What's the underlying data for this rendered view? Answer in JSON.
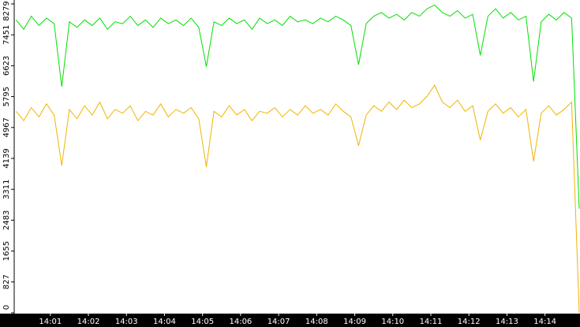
{
  "chart_data": {
    "type": "line",
    "x": [
      840.1,
      840.3,
      840.5,
      840.7,
      840.9,
      841.1,
      841.3,
      841.5,
      841.7,
      841.9,
      842.1,
      842.3,
      842.5,
      842.7,
      842.9,
      843.1,
      843.3,
      843.5,
      843.7,
      843.9,
      844.1,
      844.3,
      844.5,
      844.7,
      844.9,
      845.1,
      845.3,
      845.5,
      845.7,
      845.9,
      846.1,
      846.3,
      846.5,
      846.7,
      846.9,
      847.1,
      847.3,
      847.5,
      847.7,
      847.9,
      848.1,
      848.3,
      848.5,
      848.7,
      848.9,
      849.1,
      849.3,
      849.5,
      849.7,
      849.9,
      850.1,
      850.3,
      850.5,
      850.7,
      850.9,
      851.1,
      851.3,
      851.5,
      851.7,
      851.9,
      852.1,
      852.3,
      852.5,
      852.7,
      852.9,
      853.1,
      853.3,
      853.5,
      853.7,
      853.9,
      854.1,
      854.3,
      854.5,
      854.7,
      854.9
    ],
    "series": [
      {
        "color": "#00e000",
        "values": [
          7850,
          7600,
          7950,
          7700,
          7900,
          7750,
          6060,
          7800,
          7650,
          7850,
          7700,
          7900,
          7600,
          7800,
          7750,
          7950,
          7700,
          7850,
          7650,
          7900,
          7750,
          7850,
          7700,
          7900,
          7650,
          6600,
          7800,
          7700,
          7900,
          7750,
          7850,
          7600,
          7900,
          7750,
          7850,
          7700,
          7950,
          7800,
          7850,
          7750,
          7900,
          7800,
          7950,
          7850,
          7700,
          6650,
          7750,
          7950,
          8050,
          7900,
          8000,
          7850,
          8050,
          7950,
          8150,
          8250,
          8050,
          7950,
          8100,
          7900,
          8000,
          6900,
          7950,
          8150,
          7900,
          8050,
          7850,
          7950,
          6200,
          7800,
          8000,
          7850,
          8050,
          7900,
          2790
        ]
      },
      {
        "color": "#f0b400",
        "values": [
          5400,
          5150,
          5500,
          5250,
          5600,
          5300,
          3950,
          5450,
          5200,
          5550,
          5300,
          5650,
          5200,
          5450,
          5350,
          5550,
          5150,
          5400,
          5300,
          5600,
          5250,
          5450,
          5350,
          5500,
          5200,
          3910,
          5400,
          5250,
          5550,
          5300,
          5450,
          5150,
          5400,
          5350,
          5500,
          5250,
          5450,
          5300,
          5550,
          5350,
          5450,
          5300,
          5600,
          5400,
          5250,
          4480,
          5300,
          5550,
          5400,
          5650,
          5450,
          5700,
          5500,
          5600,
          5800,
          6100,
          5650,
          5500,
          5700,
          5400,
          5550,
          4630,
          5400,
          5600,
          5350,
          5500,
          5250,
          5450,
          4060,
          5350,
          5550,
          5300,
          5450,
          5650,
          0
        ]
      }
    ],
    "xlim": [
      840.05,
      854.92
    ],
    "xticks": [
      {
        "value": 841,
        "label": "14:01"
      },
      {
        "value": 842,
        "label": "14:02"
      },
      {
        "value": 843,
        "label": "14:03"
      },
      {
        "value": 844,
        "label": "14:04"
      },
      {
        "value": 845,
        "label": "14:05"
      },
      {
        "value": 846,
        "label": "14:06"
      },
      {
        "value": 847,
        "label": "14:07"
      },
      {
        "value": 848,
        "label": "14:08"
      },
      {
        "value": 849,
        "label": "14:09"
      },
      {
        "value": 850,
        "label": "14:10"
      },
      {
        "value": 851,
        "label": "14:11"
      },
      {
        "value": 852,
        "label": "14:12"
      },
      {
        "value": 853,
        "label": "14:13"
      },
      {
        "value": 854,
        "label": "14:14"
      }
    ],
    "ylim": [
      0,
      8279
    ],
    "yticks": [
      0,
      827,
      1655,
      2483,
      3311,
      4139,
      4967,
      5795,
      6623,
      7451,
      8279
    ]
  }
}
